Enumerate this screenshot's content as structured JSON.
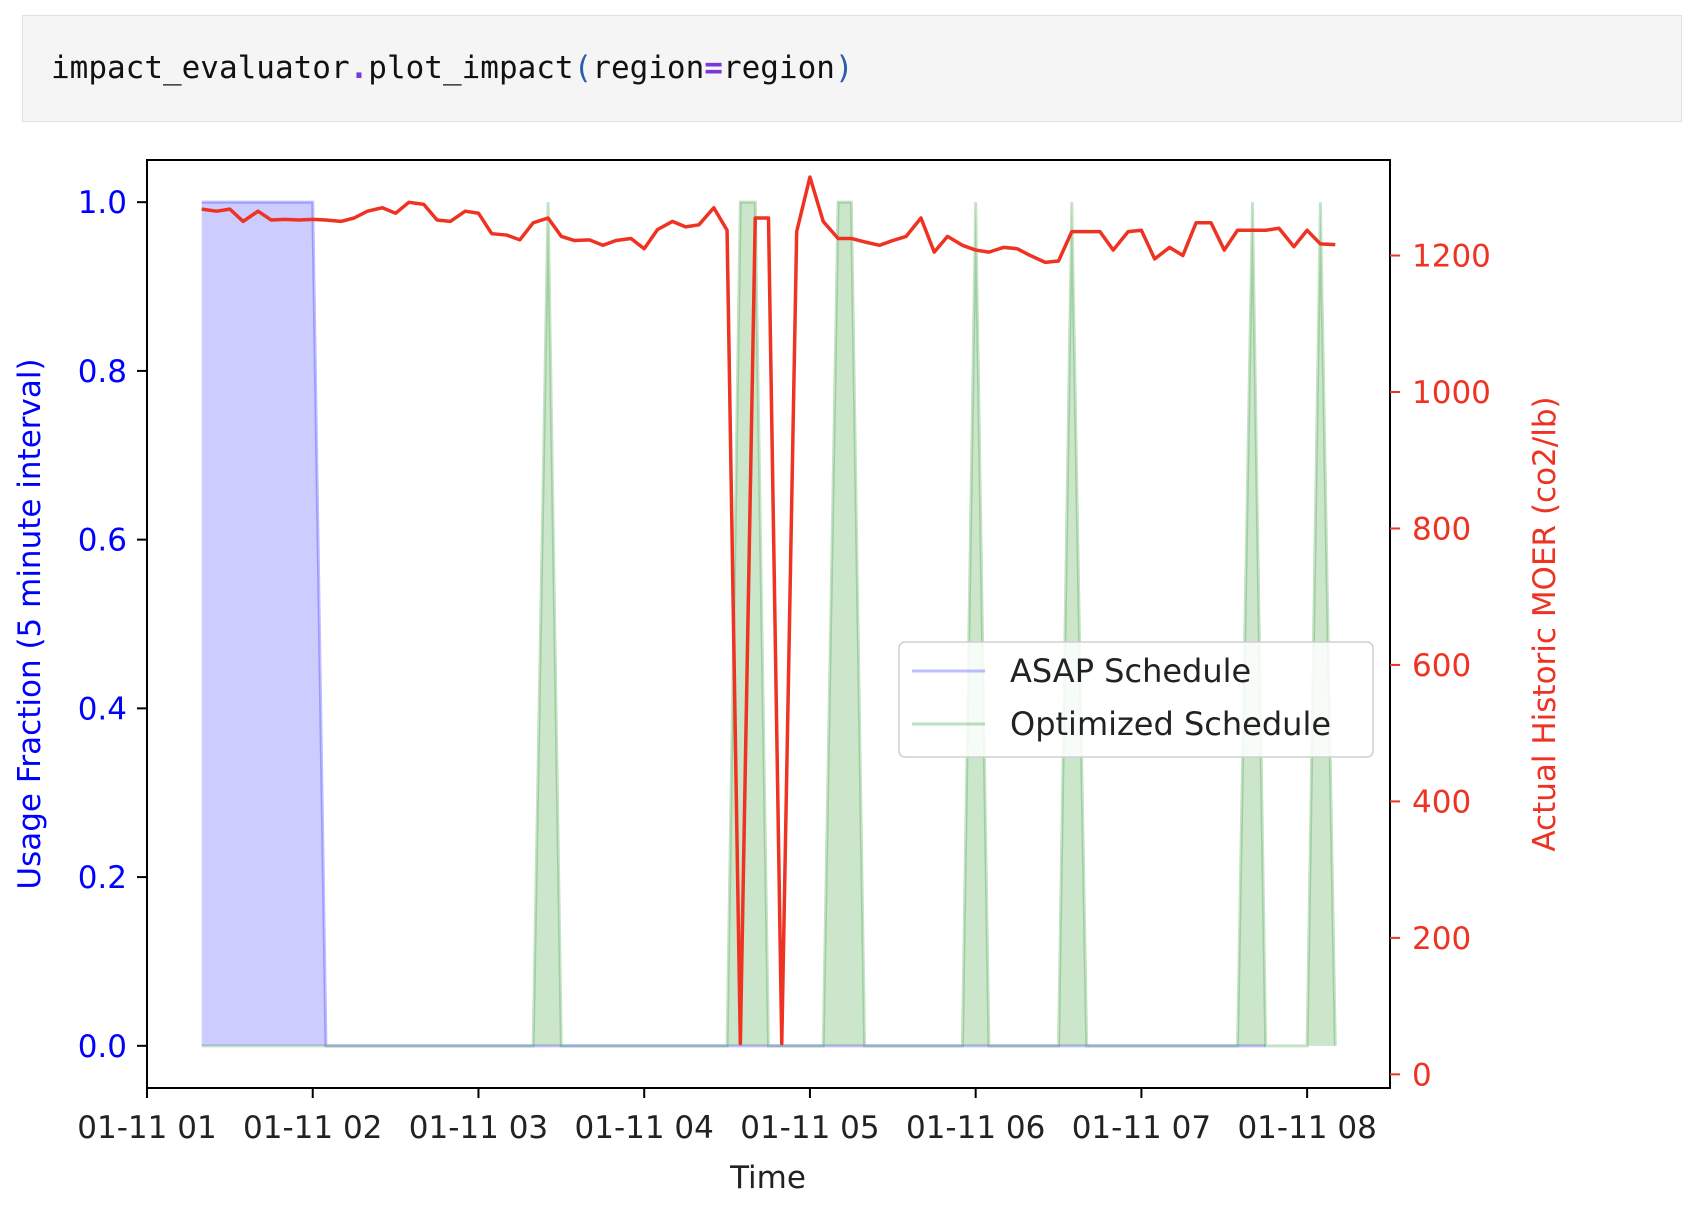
{
  "code": {
    "object": "impact_evaluator",
    "dot": ".",
    "method": "plot_impact",
    "open_paren": "(",
    "arg_name": "region",
    "equals": "=",
    "arg_value": "region",
    "close_paren": ")"
  },
  "chart_data": {
    "type": "line",
    "title": "",
    "xlabel": "Time",
    "ylabel_left": "Usage Fraction (5 minute interval)",
    "ylabel_right": "Actual Historic MOER (co2/lb)",
    "x_tick_labels": [
      "01-11 01",
      "01-11 02",
      "01-11 03",
      "01-11 04",
      "01-11 05",
      "01-11 06",
      "01-11 07",
      "01-11 08"
    ],
    "x_range_hours": [
      0.0,
      7.5
    ],
    "ylim_left": [
      -0.05,
      1.05
    ],
    "ylim_right": [
      -20,
      1340
    ],
    "y_ticks_left": [
      0.0,
      0.2,
      0.4,
      0.6,
      0.8,
      1.0
    ],
    "y_tick_labels_left": [
      "0.0",
      "0.2",
      "0.4",
      "0.6",
      "0.8",
      "1.0"
    ],
    "y_ticks_right": [
      0,
      200,
      400,
      600,
      800,
      1000,
      1200
    ],
    "y_tick_labels_right": [
      "0",
      "200",
      "400",
      "600",
      "800",
      "1000",
      "1200"
    ],
    "grid": false,
    "legend_position": "center-right",
    "colors": {
      "asap": "#0000ff",
      "optimized": "#008000",
      "moer": "#ee3322",
      "left_axis": "#0000ff",
      "right_axis": "#ee3322"
    },
    "series": [
      {
        "name": "ASAP Schedule",
        "axis": "left",
        "x": [
          0.33,
          1.0,
          1.08,
          6.75
        ],
        "values": [
          1.0,
          1.0,
          0.0,
          0.0
        ]
      },
      {
        "name": "Optimized Schedule",
        "axis": "left",
        "x": [
          0.33,
          2.33,
          2.42,
          2.5,
          3.5,
          3.58,
          3.67,
          3.75,
          4.08,
          4.17,
          4.25,
          4.33,
          4.42,
          4.92,
          5.0,
          5.08,
          5.5,
          5.58,
          5.67,
          6.58,
          6.67,
          6.75,
          7.0,
          7.08,
          7.17
        ],
        "values": [
          0.0,
          0.0,
          1.0,
          0.0,
          0.0,
          1.0,
          1.0,
          0.0,
          0.0,
          1.0,
          1.0,
          0.0,
          0.0,
          0.0,
          1.0,
          0.0,
          0.0,
          1.0,
          0.0,
          0.0,
          1.0,
          0.0,
          0.0,
          1.0,
          0.0
        ]
      },
      {
        "name": "",
        "axis": "right",
        "x": [
          0.33,
          0.42,
          0.5,
          0.58,
          0.67,
          0.75,
          0.83,
          0.92,
          1.0,
          1.08,
          1.17,
          1.25,
          1.33,
          1.42,
          1.5,
          1.58,
          1.67,
          1.75,
          1.83,
          1.92,
          2.0,
          2.08,
          2.17,
          2.25,
          2.33,
          2.42,
          2.5,
          2.58,
          2.67,
          2.75,
          2.83,
          2.92,
          3.0,
          3.08,
          3.17,
          3.25,
          3.33,
          3.42,
          3.5,
          3.58,
          3.67,
          3.75,
          3.83,
          3.92,
          4.0,
          4.08,
          4.17,
          4.25,
          4.33,
          4.42,
          4.5,
          4.58,
          4.67,
          4.75,
          4.83,
          4.92,
          5.0,
          5.08,
          5.17,
          5.25,
          5.33,
          5.42,
          5.5,
          5.58,
          5.67,
          5.75,
          5.83,
          5.92,
          6.0,
          6.08,
          6.17,
          6.25,
          6.33,
          6.42,
          6.5,
          6.58,
          6.67,
          6.75,
          6.83,
          6.92,
          7.0,
          7.08,
          7.17
        ],
        "values": [
          1268,
          1265,
          1268,
          1250,
          1265,
          1252,
          1253,
          1252,
          1253,
          1252,
          1250,
          1255,
          1265,
          1270,
          1262,
          1278,
          1275,
          1252,
          1250,
          1265,
          1262,
          1232,
          1230,
          1223,
          1248,
          1255,
          1228,
          1222,
          1223,
          1215,
          1222,
          1225,
          1210,
          1238,
          1250,
          1242,
          1245,
          1270,
          1237,
          45,
          1255,
          1255,
          45,
          1235,
          1315,
          1250,
          1225,
          1225,
          1220,
          1215,
          1222,
          1228,
          1255,
          1205,
          1228,
          1215,
          1208,
          1205,
          1212,
          1210,
          1200,
          1190,
          1192,
          1235,
          1235,
          1235,
          1208,
          1235,
          1237,
          1195,
          1212,
          1200,
          1248,
          1248,
          1208,
          1237,
          1237,
          1237,
          1240,
          1213,
          1237,
          1217,
          1216
        ]
      }
    ]
  }
}
